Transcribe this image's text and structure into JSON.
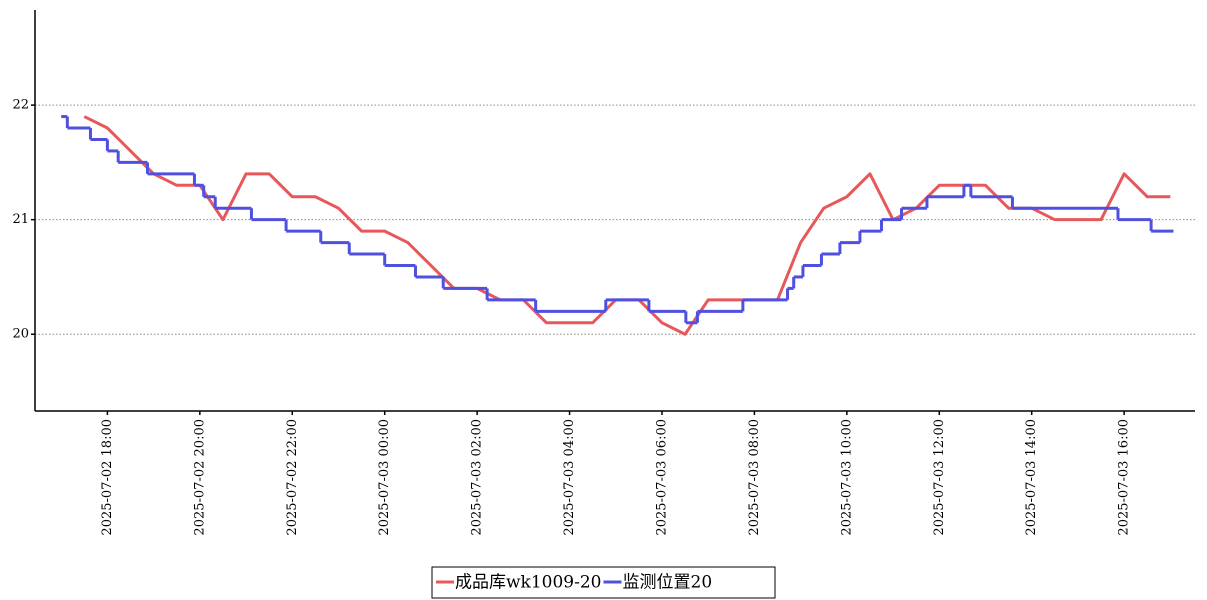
{
  "chart_data": {
    "type": "line",
    "xlim": [
      "2025-07-02 16:26",
      "2025-07-03 17:32"
    ],
    "xticks": [
      "2025-07-02 18:00",
      "2025-07-02 20:00",
      "2025-07-02 22:00",
      "2025-07-03 00:00",
      "2025-07-03 02:00",
      "2025-07-03 04:00",
      "2025-07-03 06:00",
      "2025-07-03 08:00",
      "2025-07-03 10:00",
      "2025-07-03 12:00",
      "2025-07-03 14:00",
      "2025-07-03 16:00"
    ],
    "ylim": [
      19.33,
      22.83
    ],
    "yticks": [
      20,
      21,
      22
    ],
    "grid": true,
    "series": [
      {
        "name": "成品库wk1009-20",
        "color": "#e8585a",
        "step": false,
        "x": [
          "2025-07-02 17:30",
          "2025-07-02 18:00",
          "2025-07-02 18:30",
          "2025-07-02 19:00",
          "2025-07-02 19:30",
          "2025-07-02 20:00",
          "2025-07-02 20:30",
          "2025-07-02 21:00",
          "2025-07-02 21:30",
          "2025-07-02 22:00",
          "2025-07-02 22:30",
          "2025-07-02 23:00",
          "2025-07-02 23:30",
          "2025-07-03 00:00",
          "2025-07-03 00:30",
          "2025-07-03 01:00",
          "2025-07-03 01:30",
          "2025-07-03 02:00",
          "2025-07-03 02:30",
          "2025-07-03 03:00",
          "2025-07-03 03:30",
          "2025-07-03 04:00",
          "2025-07-03 04:30",
          "2025-07-03 05:00",
          "2025-07-03 05:30",
          "2025-07-03 06:00",
          "2025-07-03 06:30",
          "2025-07-03 07:00",
          "2025-07-03 07:30",
          "2025-07-03 08:00",
          "2025-07-03 08:30",
          "2025-07-03 09:00",
          "2025-07-03 09:30",
          "2025-07-03 10:00",
          "2025-07-03 10:30",
          "2025-07-03 11:00",
          "2025-07-03 11:30",
          "2025-07-03 12:00",
          "2025-07-03 12:30",
          "2025-07-03 13:00",
          "2025-07-03 13:30",
          "2025-07-03 14:00",
          "2025-07-03 14:30",
          "2025-07-03 15:00",
          "2025-07-03 15:30",
          "2025-07-03 16:00",
          "2025-07-03 16:30",
          "2025-07-03 17:00"
        ],
        "values": [
          21.9,
          21.8,
          21.6,
          21.4,
          21.3,
          21.3,
          21.0,
          21.4,
          21.4,
          21.2,
          21.2,
          21.1,
          20.9,
          20.9,
          20.8,
          20.6,
          20.4,
          20.4,
          20.3,
          20.3,
          20.1,
          20.1,
          20.1,
          20.3,
          20.3,
          20.1,
          20.0,
          20.3,
          20.3,
          20.3,
          20.3,
          20.8,
          21.1,
          21.2,
          21.4,
          21.0,
          21.1,
          21.3,
          21.3,
          21.3,
          21.1,
          21.1,
          21.0,
          21.0,
          21.0,
          21.4,
          21.2,
          21.2
        ]
      },
      {
        "name": "监测位置20",
        "color": "#5050e0",
        "step": true,
        "x": [
          "2025-07-02 17:00",
          "2025-07-02 17:08",
          "2025-07-02 17:38",
          "2025-07-02 18:00",
          "2025-07-02 18:14",
          "2025-07-02 18:52",
          "2025-07-02 19:53",
          "2025-07-02 20:05",
          "2025-07-02 20:20",
          "2025-07-02 21:07",
          "2025-07-02 21:52",
          "2025-07-02 22:37",
          "2025-07-02 23:14",
          "2025-07-03 00:00",
          "2025-07-03 00:40",
          "2025-07-03 01:16",
          "2025-07-03 02:13",
          "2025-07-03 03:16",
          "2025-07-03 04:47",
          "2025-07-03 05:43",
          "2025-07-03 06:31",
          "2025-07-03 06:46",
          "2025-07-03 07:45",
          "2025-07-03 08:43",
          "2025-07-03 08:51",
          "2025-07-03 09:03",
          "2025-07-03 09:27",
          "2025-07-03 09:51",
          "2025-07-03 10:17",
          "2025-07-03 10:45",
          "2025-07-03 11:11",
          "2025-07-03 11:44",
          "2025-07-03 12:32",
          "2025-07-03 12:41",
          "2025-07-03 13:35",
          "2025-07-03 15:52",
          "2025-07-03 16:35",
          "2025-07-03 17:04"
        ],
        "values": [
          21.9,
          21.8,
          21.7,
          21.6,
          21.5,
          21.4,
          21.3,
          21.2,
          21.1,
          21.0,
          20.9,
          20.8,
          20.7,
          20.6,
          20.5,
          20.4,
          20.3,
          20.2,
          20.3,
          20.2,
          20.1,
          20.2,
          20.3,
          20.4,
          20.5,
          20.6,
          20.7,
          20.8,
          20.9,
          21.0,
          21.1,
          21.2,
          21.3,
          21.2,
          21.1,
          21.0,
          20.9,
          20.9
        ]
      }
    ]
  }
}
